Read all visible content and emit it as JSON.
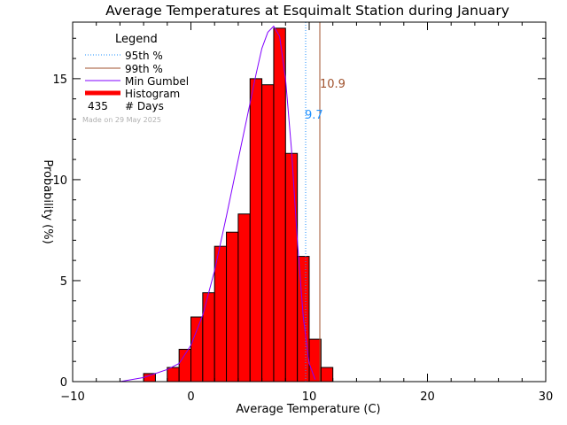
{
  "chart_data": {
    "type": "bar",
    "title": "Average Temperatures at Esquimalt Station during January",
    "xlabel": "Average Temperature (C)",
    "ylabel": "Probability (%)",
    "xlim": [
      -10,
      30
    ],
    "ylim": [
      0,
      17.8
    ],
    "x_ticks": [
      -10,
      0,
      10,
      20,
      30
    ],
    "y_ticks": [
      0,
      5,
      10,
      15
    ],
    "grid": false,
    "legend": {
      "position": "top-left",
      "title": "Legend",
      "entries": [
        {
          "label": "95th %",
          "style": "dotted",
          "color": "#1e90ff"
        },
        {
          "label": "99th %",
          "style": "solid",
          "color": "#a0522d"
        },
        {
          "label": "Min Gumbel",
          "style": "solid",
          "color": "#8000ff"
        },
        {
          "label": "Histogram",
          "style": "thick",
          "color": "#ff0000"
        }
      ],
      "count_value": "435",
      "count_label": "# Days",
      "note": "Made on 29 May 2025"
    },
    "histogram": {
      "bin_width": 1,
      "color": "#ff0000",
      "bins": [
        {
          "x0": -4,
          "value": 0.4
        },
        {
          "x0": -3,
          "value": 0.0
        },
        {
          "x0": -2,
          "value": 0.7
        },
        {
          "x0": -1,
          "value": 1.6
        },
        {
          "x0": 0,
          "value": 3.2
        },
        {
          "x0": 1,
          "value": 4.4
        },
        {
          "x0": 2,
          "value": 6.7
        },
        {
          "x0": 3,
          "value": 7.4
        },
        {
          "x0": 4,
          "value": 8.3
        },
        {
          "x0": 5,
          "value": 15.0
        },
        {
          "x0": 6,
          "value": 14.7
        },
        {
          "x0": 7,
          "value": 17.5
        },
        {
          "x0": 8,
          "value": 11.3
        },
        {
          "x0": 9,
          "value": 6.2
        },
        {
          "x0": 10,
          "value": 2.1
        },
        {
          "x0": 11,
          "value": 0.7
        }
      ]
    },
    "gumbel_curve": {
      "color": "#8000ff",
      "x": [
        -6,
        -4,
        -2,
        -1,
        0,
        1,
        2,
        3,
        4,
        5,
        5.5,
        6,
        6.5,
        7,
        7.5,
        8,
        8.5,
        9,
        9.5,
        10,
        10.5
      ],
      "y": [
        0,
        0.2,
        0.6,
        0.9,
        1.8,
        3.3,
        5.5,
        8.2,
        11.0,
        13.8,
        15.2,
        16.5,
        17.3,
        17.6,
        17.1,
        15.0,
        11.5,
        7.0,
        3.2,
        0.9,
        0.1
      ]
    },
    "percentiles": [
      {
        "name": "95th %",
        "value": 9.7,
        "label": "9.7",
        "color": "#1e90ff",
        "style": "dotted"
      },
      {
        "name": "99th %",
        "value": 10.9,
        "label": "10.9",
        "color": "#a0522d",
        "style": "solid"
      }
    ]
  }
}
